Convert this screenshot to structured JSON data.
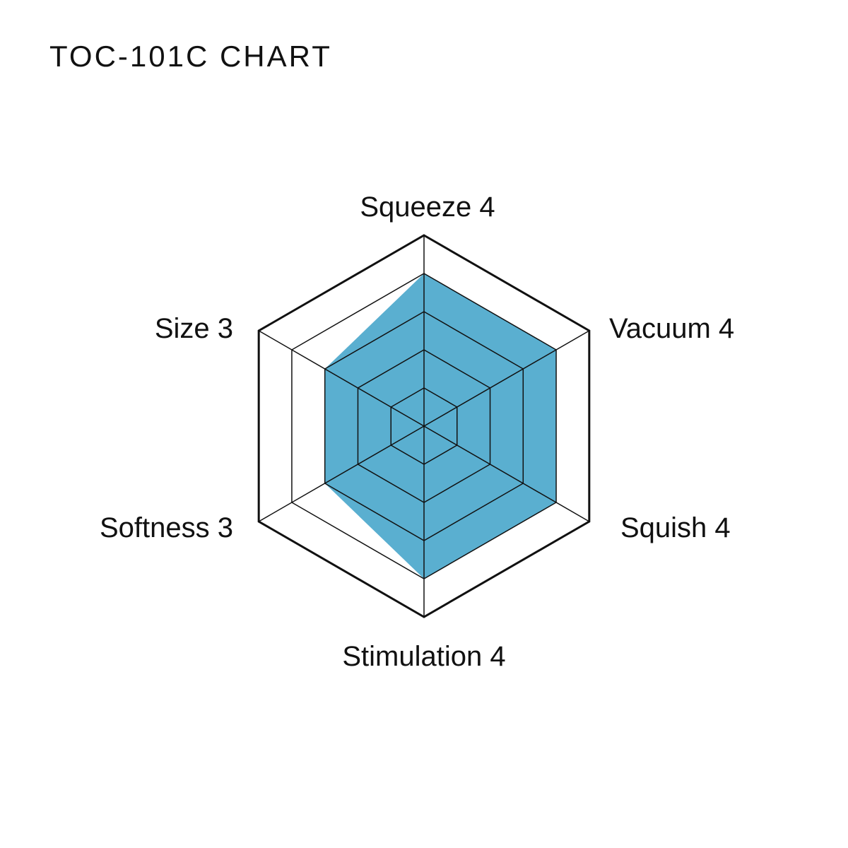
{
  "title": "TOC-101C CHART",
  "chart_data": {
    "type": "radar",
    "title": "TOC-101C CHART",
    "categories": [
      "Squeeze",
      "Vacuum",
      "Squish",
      "Stimulation",
      "Softness",
      "Size"
    ],
    "values": [
      4,
      4,
      4,
      4,
      3,
      3
    ],
    "rlim": [
      0,
      5
    ],
    "levels": 5,
    "grid": true,
    "fill_color": "#5aafd0",
    "grid_color": "#111111"
  }
}
